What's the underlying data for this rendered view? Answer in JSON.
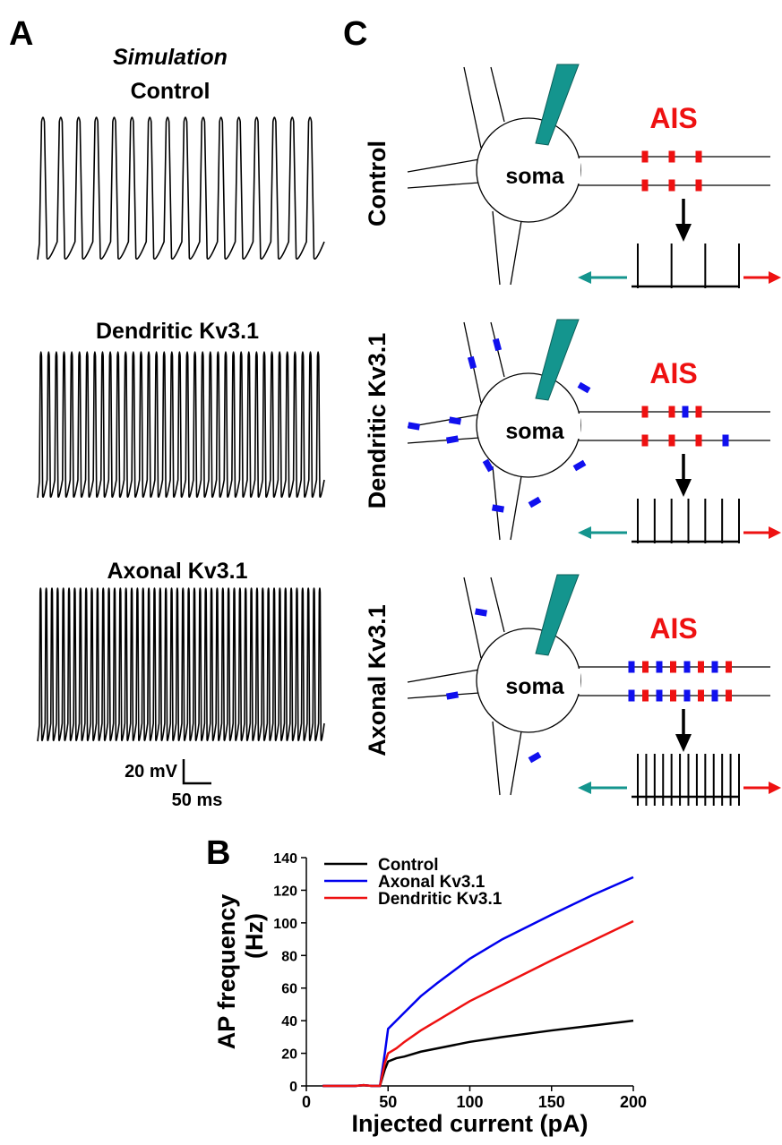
{
  "panel_a": {
    "label": "A",
    "subtitle": "Simulation",
    "traces": [
      "Control",
      "Dendritic Kv3.1",
      "Axonal Kv3.1"
    ],
    "scale_bar": {
      "voltage": "20 mV",
      "time": "50 ms"
    }
  },
  "panel_c": {
    "label": "C",
    "rows": [
      "Control",
      "Dendritic Kv3.1",
      "Axonal Kv3.1"
    ],
    "soma": "soma",
    "ais": "AIS"
  },
  "chart_data": {
    "type": "line",
    "label": "B",
    "x_label": "Injected current (pA)",
    "y_label": [
      "AP frequency",
      "(Hz)"
    ],
    "x": [
      10,
      20,
      30,
      35,
      40,
      45,
      48,
      50,
      55,
      60,
      70,
      80,
      100,
      120,
      150,
      175,
      200
    ],
    "series": [
      {
        "name": "Control",
        "color": "#000000",
        "values": [
          0,
          0,
          0,
          0.5,
          0,
          0,
          10,
          15,
          17,
          18,
          21,
          23,
          27,
          30,
          34,
          37,
          40
        ]
      },
      {
        "name": "Axonal Kv3.1",
        "color": "#0000ee",
        "values": [
          0,
          0,
          0,
          0.5,
          0,
          0,
          20,
          35,
          40,
          45,
          55,
          63,
          78,
          90,
          105,
          117,
          128
        ]
      },
      {
        "name": "Dendritic Kv3.1",
        "color": "#ee1111",
        "values": [
          0,
          0,
          0,
          0.5,
          0,
          0,
          14,
          20,
          23,
          27,
          34,
          40,
          52,
          62,
          77,
          89,
          101
        ]
      }
    ],
    "xlim": [
      0,
      200
    ],
    "ylim": [
      0,
      140
    ],
    "xticks": [
      0,
      50,
      100,
      150,
      200
    ],
    "yticks": [
      0,
      20,
      40,
      60,
      80,
      100,
      120,
      140
    ],
    "legend": "upper left"
  }
}
